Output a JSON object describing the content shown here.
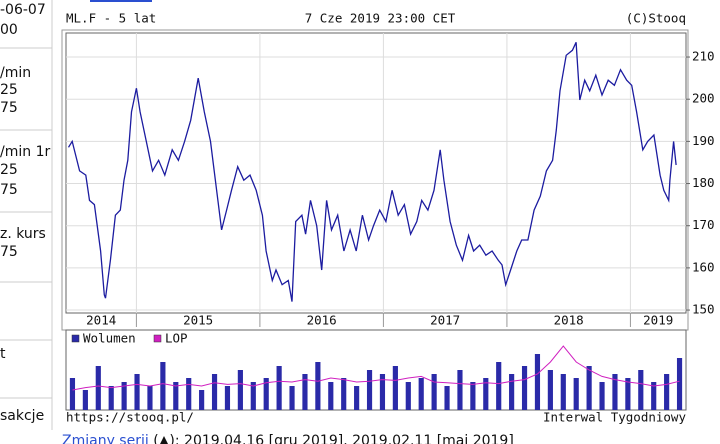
{
  "sidebar": [
    "-06-07",
    "00",
    "/min",
    "25",
    "75",
    "/min 1r",
    "25",
    "75",
    "z. kurs",
    "75",
    "t",
    "sakcje"
  ],
  "chart_data": [
    {
      "type": "line",
      "title": "ML.F - 5 lat",
      "subtitle": "7 Cze 2019 23:00 CET",
      "source": "(C)Stooq",
      "color": "#1c1ca0",
      "x": [
        2014.45,
        2014.48,
        2014.54,
        2014.59,
        2014.62,
        2014.66,
        2014.71,
        2014.74,
        2014.75,
        2014.79,
        2014.83,
        2014.87,
        2014.9,
        2014.93,
        2014.96,
        2015.0,
        2015.03,
        2015.08,
        2015.13,
        2015.18,
        2015.23,
        2015.29,
        2015.34,
        2015.39,
        2015.44,
        2015.5,
        2015.55,
        2015.6,
        2015.63,
        2015.66,
        2015.69,
        2015.73,
        2015.77,
        2015.82,
        2015.87,
        2015.92,
        2015.97,
        2016.02,
        2016.05,
        2016.1,
        2016.13,
        2016.18,
        2016.23,
        2016.26,
        2016.29,
        2016.34,
        2016.37,
        2016.41,
        2016.46,
        2016.5,
        2016.54,
        2016.58,
        2016.63,
        2016.68,
        2016.73,
        2016.78,
        2016.83,
        2016.88,
        2016.92,
        2016.97,
        2017.02,
        2017.07,
        2017.12,
        2017.17,
        2017.22,
        2017.27,
        2017.31,
        2017.36,
        2017.41,
        2017.46,
        2017.49,
        2017.54,
        2017.59,
        2017.64,
        2017.69,
        2017.73,
        2017.78,
        2017.83,
        2017.88,
        2017.93,
        2017.96,
        2017.99,
        2018.03,
        2018.08,
        2018.12,
        2018.17,
        2018.22,
        2018.27,
        2018.32,
        2018.37,
        2018.4,
        2018.43,
        2018.48,
        2018.53,
        2018.56,
        2018.59,
        2018.63,
        2018.67,
        2018.72,
        2018.77,
        2018.82,
        2018.87,
        2018.92,
        2018.97,
        2019.01,
        2019.05,
        2019.1,
        2019.14,
        2019.19,
        2019.24,
        2019.27,
        2019.31,
        2019.32,
        2019.35,
        2019.37
      ],
      "values": [
        188.6,
        190,
        183,
        182,
        176,
        175,
        164,
        153.6,
        152.8,
        162,
        172.5,
        173.7,
        180.8,
        185.5,
        197,
        202.6,
        197,
        190,
        183,
        185.5,
        182,
        188,
        185.5,
        190,
        195,
        205,
        197,
        190,
        183,
        176,
        169,
        173.7,
        178.4,
        184,
        180.8,
        182,
        178.4,
        172.5,
        164,
        157,
        159.5,
        156,
        157,
        152,
        171,
        172.5,
        168,
        176,
        170,
        159.5,
        176,
        169,
        172.5,
        164,
        169,
        164,
        172.5,
        166.6,
        170,
        173.7,
        171,
        178.4,
        172.5,
        175,
        168,
        171,
        176,
        173.7,
        178.4,
        188,
        180.8,
        171,
        165.4,
        161.8,
        167.7,
        164,
        165.4,
        163,
        164,
        161.8,
        160.7,
        156,
        159.5,
        164,
        166.6,
        166.6,
        173.7,
        177,
        183,
        185.5,
        192.7,
        202,
        210.4,
        211.6,
        213.5,
        199.8,
        204.5,
        202,
        205.7,
        201,
        204.5,
        203.3,
        207,
        204.5,
        203.3,
        197,
        188,
        190,
        191.5,
        182,
        178.4,
        176,
        180.8,
        190,
        184.4
      ],
      "xlim": [
        2014.43,
        2019.45
      ],
      "xticks": [
        2014,
        2015,
        2016,
        2017,
        2018,
        2019
      ],
      "ylim": [
        149.3,
        215.7
      ],
      "yticks": [
        150,
        160,
        170,
        180,
        190,
        200,
        210
      ],
      "grid": true
    },
    {
      "type": "bar",
      "legend": "top-left",
      "footer_left": "https://stooq.pl/",
      "footer_right": "Interwal Tygodniowy",
      "categories": [
        null,
        null,
        null,
        null,
        null,
        null,
        null,
        null,
        null,
        null,
        null,
        null,
        null,
        null,
        null,
        null,
        null,
        null,
        null,
        null,
        null,
        null,
        null,
        null,
        null,
        null,
        null,
        null,
        null,
        null,
        null,
        null,
        null,
        null,
        null,
        null,
        null,
        null,
        null,
        null,
        null,
        null,
        null,
        null,
        null,
        null,
        null,
        null
      ],
      "ylim": [
        0,
        100
      ],
      "series": [
        {
          "name": "Wolumen",
          "color": "#2a2aa8",
          "type": "bar",
          "values": [
            40,
            25,
            55,
            30,
            35,
            45,
            30,
            60,
            35,
            40,
            25,
            45,
            30,
            50,
            35,
            40,
            55,
            30,
            45,
            60,
            35,
            40,
            30,
            50,
            45,
            55,
            35,
            40,
            45,
            30,
            50,
            35,
            40,
            60,
            45,
            55,
            70,
            50,
            45,
            40,
            55,
            35,
            45,
            40,
            50,
            35,
            45,
            65
          ]
        },
        {
          "name": "LOP",
          "color": "#d020c0",
          "type": "line",
          "values": [
            25,
            28,
            30,
            28,
            30,
            32,
            30,
            33,
            30,
            32,
            30,
            34,
            32,
            33,
            30,
            34,
            36,
            35,
            38,
            36,
            40,
            38,
            35,
            36,
            38,
            37,
            40,
            42,
            35,
            34,
            33,
            32,
            34,
            33,
            36,
            38,
            45,
            60,
            80,
            60,
            50,
            42,
            38,
            35,
            33,
            30,
            32,
            36
          ]
        }
      ]
    }
  ],
  "footer": {
    "link": "Zmiany serii",
    "text": " (▲): 2019.04.16 [gru 2019], 2019.02.11 [maj 2019]"
  }
}
